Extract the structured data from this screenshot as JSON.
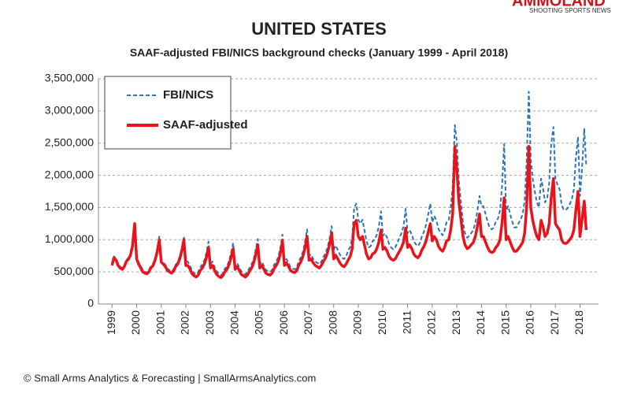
{
  "chart_data": {
    "type": "line",
    "title": "UNITED STATES",
    "subtitle": "SAAF-adjusted FBI/NICS background checks (January 1999 - April 2018)",
    "footer": "© Small Arms Analytics & Forecasting | SmallArmsAnalytics.com",
    "watermark": {
      "brand": "AMMOLAND",
      "tagline": "SHOOTING SPORTS NEWS"
    },
    "legend": "upper left",
    "grid": true,
    "xlim": [
      1998.45,
      2018.75
    ],
    "xticks": [
      1999,
      2000,
      2001,
      2002,
      2003,
      2004,
      2005,
      2006,
      2007,
      2008,
      2009,
      2010,
      2011,
      2012,
      2013,
      2014,
      2015,
      2016,
      2017,
      2018
    ],
    "ylim": [
      0,
      3500000
    ],
    "yticks": [
      0,
      {
        "value": 500000,
        "label": "500,000"
      },
      {
        "value": 1000000,
        "label": "1,000,000"
      },
      {
        "value": 1500000,
        "label": "1,500,000"
      },
      {
        "value": 2000000,
        "label": "2,000,000"
      },
      {
        "value": 2500000,
        "label": "2,500,000"
      },
      {
        "value": 3000000,
        "label": "3,000,000"
      },
      {
        "value": 3500000,
        "label": "3,500,000"
      }
    ],
    "x": [
      1999,
      1999.08,
      1999.17,
      1999.25,
      1999.33,
      1999.42,
      1999.5,
      1999.58,
      1999.67,
      1999.75,
      1999.83,
      1999.92,
      2000,
      2000.08,
      2000.17,
      2000.25,
      2000.33,
      2000.42,
      2000.5,
      2000.58,
      2000.67,
      2000.75,
      2000.83,
      2000.92,
      2001,
      2001.08,
      2001.17,
      2001.25,
      2001.33,
      2001.42,
      2001.5,
      2001.58,
      2001.67,
      2001.75,
      2001.83,
      2001.92,
      2002,
      2002.08,
      2002.17,
      2002.25,
      2002.33,
      2002.42,
      2002.5,
      2002.58,
      2002.67,
      2002.75,
      2002.83,
      2002.92,
      2003,
      2003.08,
      2003.17,
      2003.25,
      2003.33,
      2003.42,
      2003.5,
      2003.58,
      2003.67,
      2003.75,
      2003.83,
      2003.92,
      2004,
      2004.08,
      2004.17,
      2004.25,
      2004.33,
      2004.42,
      2004.5,
      2004.58,
      2004.67,
      2004.75,
      2004.83,
      2004.92,
      2005,
      2005.08,
      2005.17,
      2005.25,
      2005.33,
      2005.42,
      2005.5,
      2005.58,
      2005.67,
      2005.75,
      2005.83,
      2005.92,
      2006,
      2006.08,
      2006.17,
      2006.25,
      2006.33,
      2006.42,
      2006.5,
      2006.58,
      2006.67,
      2006.75,
      2006.83,
      2006.92,
      2007,
      2007.08,
      2007.17,
      2007.25,
      2007.33,
      2007.42,
      2007.5,
      2007.58,
      2007.67,
      2007.75,
      2007.83,
      2007.92,
      2008,
      2008.08,
      2008.17,
      2008.25,
      2008.33,
      2008.42,
      2008.5,
      2008.58,
      2008.67,
      2008.75,
      2008.83,
      2008.92,
      2009,
      2009.08,
      2009.17,
      2009.25,
      2009.33,
      2009.42,
      2009.5,
      2009.58,
      2009.67,
      2009.75,
      2009.83,
      2009.92,
      2010,
      2010.08,
      2010.17,
      2010.25,
      2010.33,
      2010.42,
      2010.5,
      2010.58,
      2010.67,
      2010.75,
      2010.83,
      2010.92,
      2011,
      2011.08,
      2011.17,
      2011.25,
      2011.33,
      2011.42,
      2011.5,
      2011.58,
      2011.67,
      2011.75,
      2011.83,
      2011.92,
      2012,
      2012.08,
      2012.17,
      2012.25,
      2012.33,
      2012.42,
      2012.5,
      2012.58,
      2012.67,
      2012.75,
      2012.83,
      2012.92,
      2013,
      2013.08,
      2013.17,
      2013.25,
      2013.33,
      2013.42,
      2013.5,
      2013.58,
      2013.67,
      2013.75,
      2013.83,
      2013.92,
      2014,
      2014.08,
      2014.17,
      2014.25,
      2014.33,
      2014.42,
      2014.5,
      2014.58,
      2014.67,
      2014.75,
      2014.83,
      2014.92,
      2015,
      2015.08,
      2015.17,
      2015.25,
      2015.33,
      2015.42,
      2015.5,
      2015.58,
      2015.67,
      2015.75,
      2015.83,
      2015.92,
      2016,
      2016.08,
      2016.17,
      2016.25,
      2016.33,
      2016.42,
      2016.5,
      2016.58,
      2016.67,
      2016.75,
      2016.83,
      2016.92,
      2017,
      2017.08,
      2017.17,
      2017.25,
      2017.33,
      2017.42,
      2017.5,
      2017.58,
      2017.67,
      2017.75,
      2017.83,
      2017.92,
      2018,
      2018.08,
      2018.17,
      2018.25
    ],
    "series": [
      {
        "name": "FBI/NICS",
        "color": "#2e75b6",
        "line_style": "dashed",
        "values": [
          620000,
          740000,
          700000,
          620000,
          580000,
          560000,
          600000,
          680000,
          720000,
          780000,
          920000,
          1250000,
          740000,
          650000,
          590000,
          530000,
          500000,
          490000,
          530000,
          590000,
          630000,
          710000,
          840000,
          1050000,
          680000,
          650000,
          610000,
          550000,
          530000,
          500000,
          540000,
          610000,
          650000,
          740000,
          860000,
          1050000,
          660000,
          660000,
          590000,
          520000,
          480000,
          460000,
          500000,
          570000,
          620000,
          680000,
          790000,
          970000,
          620000,
          660000,
          570000,
          510000,
          470000,
          450000,
          480000,
          550000,
          590000,
          670000,
          790000,
          950000,
          590000,
          640000,
          570000,
          510000,
          480000,
          460000,
          500000,
          560000,
          620000,
          700000,
          840000,
          1010000,
          620000,
          660000,
          590000,
          530000,
          510000,
          500000,
          530000,
          610000,
          660000,
          730000,
          860000,
          1080000,
          660000,
          700000,
          640000,
          570000,
          550000,
          540000,
          570000,
          660000,
          730000,
          810000,
          950000,
          1160000,
          750000,
          770000,
          700000,
          660000,
          640000,
          620000,
          660000,
          730000,
          790000,
          880000,
          1010000,
          1210000,
          840000,
          910000,
          840000,
          770000,
          720000,
          700000,
          740000,
          820000,
          890000,
          1030000,
          1500000,
          1560000,
          1310000,
          1250000,
          1310000,
          1150000,
          980000,
          880000,
          900000,
          980000,
          1000000,
          1080000,
          1200000,
          1440000,
          1060000,
          1100000,
          1030000,
          930000,
          880000,
          850000,
          880000,
          950000,
          1030000,
          1100000,
          1200000,
          1480000,
          1100000,
          1150000,
          1080000,
          980000,
          930000,
          900000,
          950000,
          1050000,
          1130000,
          1230000,
          1380000,
          1560000,
          1270000,
          1370000,
          1300000,
          1170000,
          1110000,
          1070000,
          1140000,
          1270000,
          1300000,
          1500000,
          1820000,
          2780000,
          2520000,
          1920000,
          1560000,
          1260000,
          1100000,
          1030000,
          1060000,
          1100000,
          1150000,
          1260000,
          1440000,
          1680000,
          1520000,
          1520000,
          1390000,
          1280000,
          1190000,
          1160000,
          1190000,
          1280000,
          1330000,
          1450000,
          1810000,
          2490000,
          1450000,
          1520000,
          1390000,
          1280000,
          1190000,
          1190000,
          1250000,
          1310000,
          1390000,
          1600000,
          2200000,
          3300000,
          2250000,
          1950000,
          1730000,
          1580000,
          1500000,
          1950000,
          1800000,
          1580000,
          1650000,
          1880000,
          2480000,
          2750000,
          1940000,
          1860000,
          1780000,
          1550000,
          1470000,
          1460000,
          1490000,
          1550000,
          1630000,
          1780000,
          2250000,
          2600000,
          1680000,
          2080000,
          2720000,
          2150000
        ]
      },
      {
        "name": "SAAF-adjusted",
        "color": "#e8141c",
        "line_style": "solid",
        "values": [
          600000,
          720000,
          680000,
          600000,
          560000,
          540000,
          580000,
          660000,
          700000,
          760000,
          900000,
          1250000,
          700000,
          620000,
          560000,
          500000,
          480000,
          470000,
          500000,
          560000,
          600000,
          680000,
          800000,
          1000000,
          650000,
          620000,
          580000,
          520000,
          500000,
          480000,
          510000,
          580000,
          620000,
          700000,
          820000,
          1000000,
          600000,
          600000,
          540000,
          470000,
          440000,
          420000,
          450000,
          520000,
          560000,
          620000,
          720000,
          880000,
          560000,
          600000,
          520000,
          460000,
          430000,
          410000,
          440000,
          500000,
          540000,
          610000,
          720000,
          860000,
          540000,
          580000,
          520000,
          460000,
          440000,
          420000,
          450000,
          510000,
          560000,
          640000,
          760000,
          920000,
          560000,
          600000,
          540000,
          480000,
          460000,
          450000,
          480000,
          550000,
          600000,
          660000,
          780000,
          980000,
          600000,
          640000,
          580000,
          520000,
          500000,
          490000,
          520000,
          600000,
          660000,
          740000,
          860000,
          1050000,
          680000,
          700000,
          640000,
          600000,
          580000,
          560000,
          600000,
          660000,
          720000,
          800000,
          920000,
          1100000,
          700000,
          760000,
          700000,
          640000,
          600000,
          580000,
          620000,
          680000,
          740000,
          860000,
          1250000,
          1300000,
          1050000,
          1000000,
          1050000,
          920000,
          780000,
          700000,
          720000,
          780000,
          800000,
          860000,
          960000,
          1150000,
          850000,
          880000,
          820000,
          740000,
          700000,
          680000,
          700000,
          760000,
          820000,
          880000,
          960000,
          1180000,
          880000,
          920000,
          860000,
          780000,
          740000,
          720000,
          760000,
          840000,
          900000,
          980000,
          1100000,
          1250000,
          980000,
          1050000,
          1000000,
          900000,
          850000,
          820000,
          880000,
          980000,
          1000000,
          1150000,
          1400000,
          2450000,
          2100000,
          1600000,
          1300000,
          1050000,
          920000,
          860000,
          880000,
          920000,
          960000,
          1050000,
          1200000,
          1400000,
          1050000,
          1050000,
          960000,
          880000,
          820000,
          800000,
          820000,
          880000,
          920000,
          1000000,
          1250000,
          1650000,
          1000000,
          1050000,
          960000,
          880000,
          820000,
          820000,
          860000,
          900000,
          960000,
          1100000,
          1500000,
          2450000,
          1500000,
          1300000,
          1150000,
          1050000,
          1000000,
          1300000,
          1200000,
          1050000,
          1100000,
          1250000,
          1650000,
          1950000,
          1250000,
          1200000,
          1150000,
          1000000,
          950000,
          940000,
          960000,
          1000000,
          1050000,
          1150000,
          1450000,
          1750000,
          1050000,
          1300000,
          1600000,
          1150000
        ]
      }
    ]
  }
}
